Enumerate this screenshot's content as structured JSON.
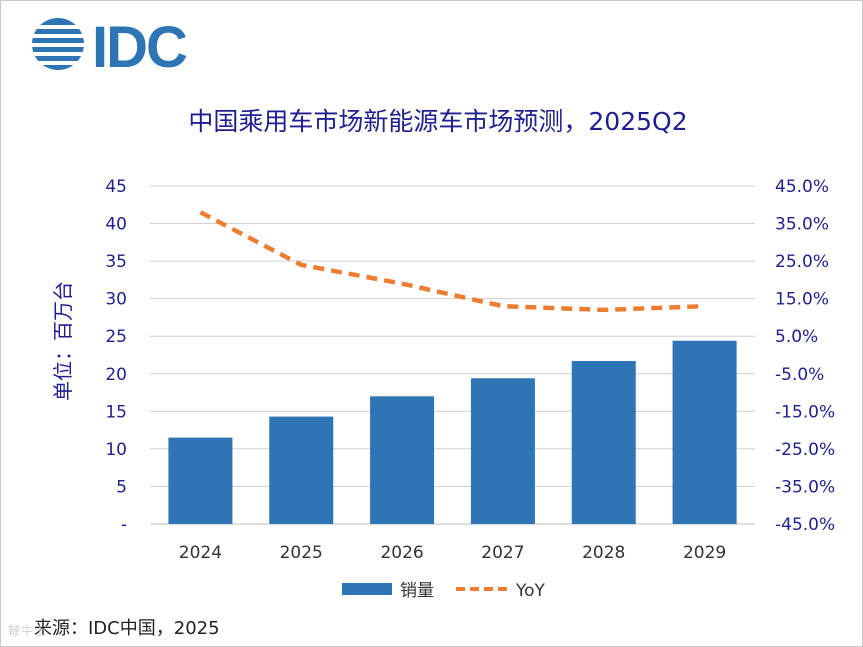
{
  "logo": {
    "text": "IDC"
  },
  "source_text": "来源：IDC中国，2025",
  "watermark": "鞭牛士",
  "colors": {
    "bar": "#2e75b6",
    "line": "#ed7d31",
    "title": "#1f1f8f",
    "axis": "#1f1f8f",
    "grid": "#d0d0d0"
  },
  "chart_data": {
    "type": "bar",
    "title": "中国乘用车市场新能源车市场预测，2025Q2",
    "ylabel": "单位：百万台",
    "xlabel": "",
    "categories": [
      "2024",
      "2025",
      "2026",
      "2027",
      "2028",
      "2029"
    ],
    "series": [
      {
        "name": "销量",
        "type": "bar",
        "axis": "left",
        "values": [
          11.5,
          14.3,
          17.0,
          19.4,
          21.7,
          24.4
        ]
      },
      {
        "name": "YoY",
        "type": "line",
        "style": "dashed",
        "axis": "right",
        "values": [
          38.0,
          24.0,
          19.0,
          13.0,
          12.0,
          13.0
        ]
      }
    ],
    "ylim": [
      0,
      45
    ],
    "y_ticks": [
      "-",
      "5",
      "10",
      "15",
      "20",
      "25",
      "30",
      "35",
      "40",
      "45"
    ],
    "y2lim": [
      -45,
      45
    ],
    "y2_ticks": [
      "-45.0%",
      "-35.0%",
      "-25.0%",
      "-15.0%",
      "-5.0%",
      "5.0%",
      "15.0%",
      "25.0%",
      "35.0%",
      "45.0%"
    ],
    "legend": {
      "position": "bottom",
      "entries": [
        "销量",
        "YoY"
      ]
    },
    "grid": true
  }
}
